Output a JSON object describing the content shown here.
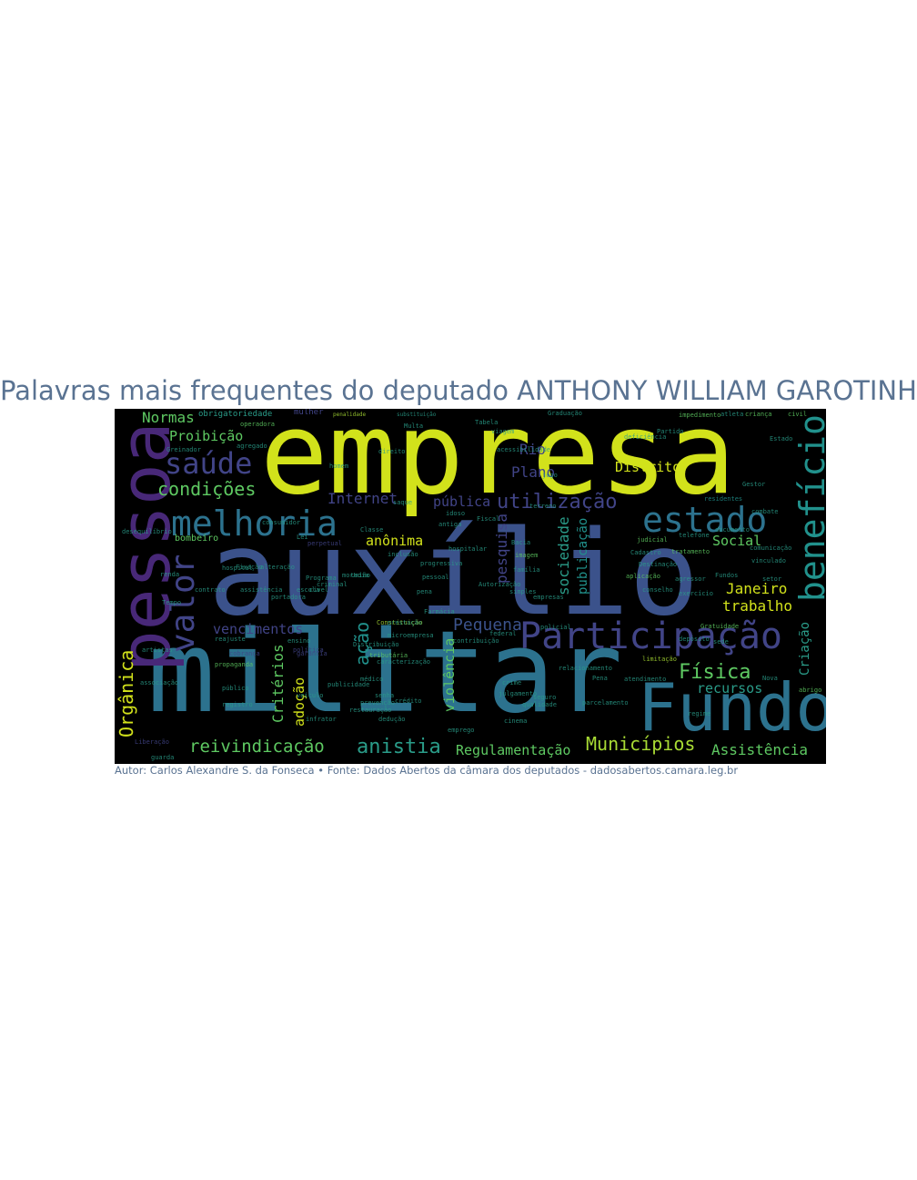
{
  "header": {
    "title": "Palavras mais frequentes do deputado ANTHONY WILLIAM GAROTINHO MATHEUS DE OLIVEIRA"
  },
  "footer": {
    "caption": "Autor: Carlos Alexandre S. da Fonseca • Fonte: Dados Abertos da câmara dos deputados - dadosabertos.camara.leg.br"
  },
  "colors": {
    "title": "#5a7392",
    "caption": "#5a7392",
    "cloud_background": "#000000",
    "palette": {
      "yellow": "#d2e21b",
      "lime": "#a8db34",
      "green": "#5ec962",
      "teal": "#2a9c89",
      "cyan": "#21918c",
      "steel": "#2c728e",
      "blue": "#3b528b",
      "indigo": "#414487",
      "purple": "#482878",
      "deep": "#440154"
    }
  },
  "wordcloud": {
    "words": [
      {
        "text": "empresa",
        "color": "yellow",
        "rotate": false
      },
      {
        "text": "auxílio",
        "color": "blue",
        "rotate": false
      },
      {
        "text": "militar",
        "color": "steel",
        "rotate": false
      },
      {
        "text": "pessoa",
        "color": "purple",
        "rotate": true
      },
      {
        "text": "Fundo",
        "color": "steel",
        "rotate": false
      },
      {
        "text": "Participação",
        "color": "indigo",
        "rotate": false
      },
      {
        "text": "benefício",
        "color": "cyan",
        "rotate": true
      },
      {
        "text": "melhoria",
        "color": "steel",
        "rotate": false
      },
      {
        "text": "estado",
        "color": "steel",
        "rotate": false
      },
      {
        "text": "valor",
        "color": "indigo",
        "rotate": true
      },
      {
        "text": "saúde",
        "color": "indigo",
        "rotate": false
      },
      {
        "text": "condições",
        "color": "green",
        "rotate": false
      },
      {
        "text": "utilização",
        "color": "indigo",
        "rotate": false
      },
      {
        "text": "Orgânica",
        "color": "yellow",
        "rotate": true
      },
      {
        "text": "reivindicação",
        "color": "green",
        "rotate": false
      },
      {
        "text": "anistia",
        "color": "teal",
        "rotate": false
      },
      {
        "text": "Municípios",
        "color": "lime",
        "rotate": false
      },
      {
        "text": "Física",
        "color": "green",
        "rotate": false
      },
      {
        "text": "Regulamentação",
        "color": "green",
        "rotate": false
      },
      {
        "text": "Assistência",
        "color": "green",
        "rotate": false
      },
      {
        "text": "Pequena",
        "color": "blue",
        "rotate": false
      },
      {
        "text": "vencimentos",
        "color": "indigo",
        "rotate": false
      },
      {
        "text": "Critérios",
        "color": "green",
        "rotate": true
      },
      {
        "text": "adoção",
        "color": "yellow",
        "rotate": true
      },
      {
        "text": "ação",
        "color": "cyan",
        "rotate": true
      },
      {
        "text": "violência",
        "color": "green",
        "rotate": true
      },
      {
        "text": "pesquisa",
        "color": "indigo",
        "rotate": true
      },
      {
        "text": "sociedade",
        "color": "teal",
        "rotate": true
      },
      {
        "text": "publicação",
        "color": "cyan",
        "rotate": true
      },
      {
        "text": "Criação",
        "color": "teal",
        "rotate": true
      },
      {
        "text": "Normas",
        "color": "green",
        "rotate": false
      },
      {
        "text": "Proibição",
        "color": "green",
        "rotate": false
      },
      {
        "text": "Internet",
        "color": "indigo",
        "rotate": false
      },
      {
        "text": "pública",
        "color": "indigo",
        "rotate": false
      },
      {
        "text": "anônima",
        "color": "yellow",
        "rotate": false
      },
      {
        "text": "Rio",
        "color": "indigo",
        "rotate": false
      },
      {
        "text": "Plano",
        "color": "indigo",
        "rotate": false
      },
      {
        "text": "Distrito",
        "color": "yellow",
        "rotate": false
      },
      {
        "text": "Social",
        "color": "green",
        "rotate": false
      },
      {
        "text": "Janeiro",
        "color": "yellow",
        "rotate": false
      },
      {
        "text": "trabalho",
        "color": "yellow",
        "rotate": false
      },
      {
        "text": "recursos",
        "color": "teal",
        "rotate": false
      },
      {
        "text": "obrigatoriedade",
        "color": "teal",
        "rotate": false
      },
      {
        "text": "mulher",
        "color": "indigo",
        "rotate": false
      },
      {
        "text": "bombeiro",
        "color": "green",
        "rotate": false
      },
      {
        "text": "penalidade",
        "color": "lime",
        "rotate": false
      },
      {
        "text": "substituição",
        "color": "teal",
        "rotate": false
      },
      {
        "text": "Graduação",
        "color": "teal",
        "rotate": false
      },
      {
        "text": "impedimento",
        "color": "green",
        "rotate": false
      },
      {
        "text": "criança",
        "color": "green",
        "rotate": false
      },
      {
        "text": "civil",
        "color": "green",
        "rotate": false
      },
      {
        "text": "Estado",
        "color": "teal",
        "rotate": false
      },
      {
        "text": "Gratuidade",
        "color": "green",
        "rotate": false
      },
      {
        "text": "residentes",
        "color": "cyan",
        "rotate": false
      },
      {
        "text": "comunicação",
        "color": "teal",
        "rotate": false
      },
      {
        "text": "judicial",
        "color": "green",
        "rotate": false
      },
      {
        "text": "Cadastro",
        "color": "teal",
        "rotate": false
      },
      {
        "text": "aplicação",
        "color": "green",
        "rotate": false
      },
      {
        "text": "Programa",
        "color": "teal",
        "rotate": false
      },
      {
        "text": "hospital",
        "color": "teal",
        "rotate": false
      },
      {
        "text": "Constituição",
        "color": "lime",
        "rotate": false
      },
      {
        "text": "microempresa",
        "color": "teal",
        "rotate": false
      },
      {
        "text": "política",
        "color": "indigo",
        "rotate": false
      },
      {
        "text": "tributária",
        "color": "green",
        "rotate": false
      },
      {
        "text": "caracterização",
        "color": "teal",
        "rotate": false
      },
      {
        "text": "propaganda",
        "color": "green",
        "rotate": false
      },
      {
        "text": "pessoal",
        "color": "teal",
        "rotate": false
      },
      {
        "text": "imagem",
        "color": "green",
        "rotate": false
      },
      {
        "text": "família",
        "color": "teal",
        "rotate": false
      },
      {
        "text": "qualidade",
        "color": "teal",
        "rotate": false
      },
      {
        "text": "cinema",
        "color": "teal",
        "rotate": false
      },
      {
        "text": "julgamento",
        "color": "teal",
        "rotate": false
      },
      {
        "text": "relacionamento",
        "color": "teal",
        "rotate": false
      },
      {
        "text": "limitação",
        "color": "lime",
        "rotate": false
      },
      {
        "text": "tratamento",
        "color": "green",
        "rotate": false
      },
      {
        "text": "policial",
        "color": "teal",
        "rotate": false
      },
      {
        "text": "Pena",
        "color": "teal",
        "rotate": false
      },
      {
        "text": "Nova",
        "color": "teal",
        "rotate": false
      },
      {
        "text": "abrigo",
        "color": "green",
        "rotate": false
      },
      {
        "text": "garantia",
        "color": "indigo",
        "rotate": false
      },
      {
        "text": "inclusão",
        "color": "teal",
        "rotate": false
      },
      {
        "text": "antiga",
        "color": "teal",
        "rotate": false
      },
      {
        "text": "renda",
        "color": "teal",
        "rotate": false
      },
      {
        "text": "hospitalar",
        "color": "teal",
        "rotate": false
      },
      {
        "text": "perpetual",
        "color": "indigo",
        "rotate": false
      },
      {
        "text": "Autorização",
        "color": "teal",
        "rotate": false
      },
      {
        "text": "crédito",
        "color": "teal",
        "rotate": false
      },
      {
        "text": "federal",
        "color": "teal",
        "rotate": false
      },
      {
        "text": "emprego",
        "color": "teal",
        "rotate": false
      },
      {
        "text": "guarda",
        "color": "teal",
        "rotate": false
      },
      {
        "text": "dedução",
        "color": "teal",
        "rotate": false
      },
      {
        "text": "restauração",
        "color": "teal",
        "rotate": false
      },
      {
        "text": "infrator",
        "color": "teal",
        "rotate": false
      },
      {
        "text": "publicidade",
        "color": "teal",
        "rotate": false
      },
      {
        "text": "Liberação",
        "color": "indigo",
        "rotate": false
      },
      {
        "text": "desequilíbrio",
        "color": "teal",
        "rotate": false
      },
      {
        "text": "Fixação",
        "color": "teal",
        "rotate": false
      },
      {
        "text": "alteração",
        "color": "teal",
        "rotate": false
      },
      {
        "text": "Distribuição",
        "color": "teal",
        "rotate": false
      },
      {
        "text": "contribuição",
        "color": "teal",
        "rotate": false
      },
      {
        "text": "registro",
        "color": "teal",
        "rotate": false
      },
      {
        "text": "veículo",
        "color": "teal",
        "rotate": false
      },
      {
        "text": "senha",
        "color": "teal",
        "rotate": false
      },
      {
        "text": "artistas",
        "color": "teal",
        "rotate": false
      },
      {
        "text": "reajuste",
        "color": "teal",
        "rotate": false
      },
      {
        "text": "cobrança",
        "color": "indigo",
        "rotate": false
      },
      {
        "text": "parcelamento",
        "color": "teal",
        "rotate": false
      },
      {
        "text": "associação",
        "color": "teal",
        "rotate": false
      },
      {
        "text": "médico",
        "color": "teal",
        "rotate": false
      },
      {
        "text": "progressiva",
        "color": "teal",
        "rotate": false
      },
      {
        "text": "Destinação",
        "color": "teal",
        "rotate": false
      },
      {
        "text": "telefone",
        "color": "teal",
        "rotate": false
      },
      {
        "text": "agressor",
        "color": "teal",
        "rotate": false
      },
      {
        "text": "ensino",
        "color": "teal",
        "rotate": false
      },
      {
        "text": "prevenção",
        "color": "teal",
        "rotate": false
      },
      {
        "text": "público",
        "color": "teal",
        "rotate": false
      },
      {
        "text": "Tabela",
        "color": "teal",
        "rotate": false
      },
      {
        "text": "Greinador",
        "color": "teal",
        "rotate": false
      },
      {
        "text": "operadora",
        "color": "green",
        "rotate": false
      },
      {
        "text": "agregado",
        "color": "teal",
        "rotate": false
      },
      {
        "text": "crime",
        "color": "teal",
        "rotate": false
      },
      {
        "text": "regime",
        "color": "teal",
        "rotate": false
      },
      {
        "text": "simples",
        "color": "teal",
        "rotate": false
      },
      {
        "text": "escola",
        "color": "teal",
        "rotate": false
      },
      {
        "text": "moradia",
        "color": "teal",
        "rotate": false
      },
      {
        "text": "atleta",
        "color": "teal",
        "rotate": false
      },
      {
        "text": "portadora",
        "color": "teal",
        "rotate": false
      },
      {
        "text": "vinculado",
        "color": "teal",
        "rotate": false
      },
      {
        "text": "exercício",
        "color": "teal",
        "rotate": false
      },
      {
        "text": "depósito",
        "color": "teal",
        "rotate": false
      },
      {
        "text": "setor",
        "color": "teal",
        "rotate": false
      },
      {
        "text": "atendimento",
        "color": "teal",
        "rotate": false
      },
      {
        "text": "conselho",
        "color": "teal",
        "rotate": false
      },
      {
        "text": "sede",
        "color": "teal",
        "rotate": false
      },
      {
        "text": "União",
        "color": "teal",
        "rotate": false
      },
      {
        "text": "Classe",
        "color": "teal",
        "rotate": false
      },
      {
        "text": "Gestor",
        "color": "teal",
        "rotate": false
      },
      {
        "text": "consumidor",
        "color": "teal",
        "rotate": false
      },
      {
        "text": "idoso",
        "color": "teal",
        "rotate": false
      },
      {
        "text": "Multa",
        "color": "teal",
        "rotate": false
      },
      {
        "text": "seguro",
        "color": "teal",
        "rotate": false
      },
      {
        "text": "Partido",
        "color": "teal",
        "rotate": false
      },
      {
        "text": "viagem",
        "color": "teal",
        "rotate": false
      },
      {
        "text": "Fundos",
        "color": "teal",
        "rotate": false
      },
      {
        "text": "Lei",
        "color": "teal",
        "rotate": false
      },
      {
        "text": "Fiscal",
        "color": "teal",
        "rotate": false
      },
      {
        "text": "Bacia",
        "color": "teal",
        "rotate": false
      },
      {
        "text": "terreno",
        "color": "teal",
        "rotate": false
      },
      {
        "text": "saque",
        "color": "teal",
        "rotate": false
      },
      {
        "text": "acessibilidade",
        "color": "teal",
        "rotate": false
      },
      {
        "text": "deficiência",
        "color": "teal",
        "rotate": false
      },
      {
        "text": "documento",
        "color": "teal",
        "rotate": false
      },
      {
        "text": "direito",
        "color": "teal",
        "rotate": false
      },
      {
        "text": "criminal",
        "color": "teal",
        "rotate": false
      },
      {
        "text": "combate",
        "color": "teal",
        "rotate": false
      },
      {
        "text": "Tempo",
        "color": "teal",
        "rotate": false
      },
      {
        "text": "pena",
        "color": "teal",
        "rotate": false
      },
      {
        "text": "jogo",
        "color": "teal",
        "rotate": false
      },
      {
        "text": "homem",
        "color": "teal",
        "rotate": false
      },
      {
        "text": "Farmácia",
        "color": "teal",
        "rotate": false
      },
      {
        "text": "cível",
        "color": "teal",
        "rotate": false
      },
      {
        "text": "assistência",
        "color": "teal",
        "rotate": false
      },
      {
        "text": "contrato",
        "color": "teal",
        "rotate": false
      },
      {
        "text": "empresas",
        "color": "teal",
        "rotate": false
      },
      {
        "text": "prestação",
        "color": "teal",
        "rotate": false
      }
    ]
  }
}
